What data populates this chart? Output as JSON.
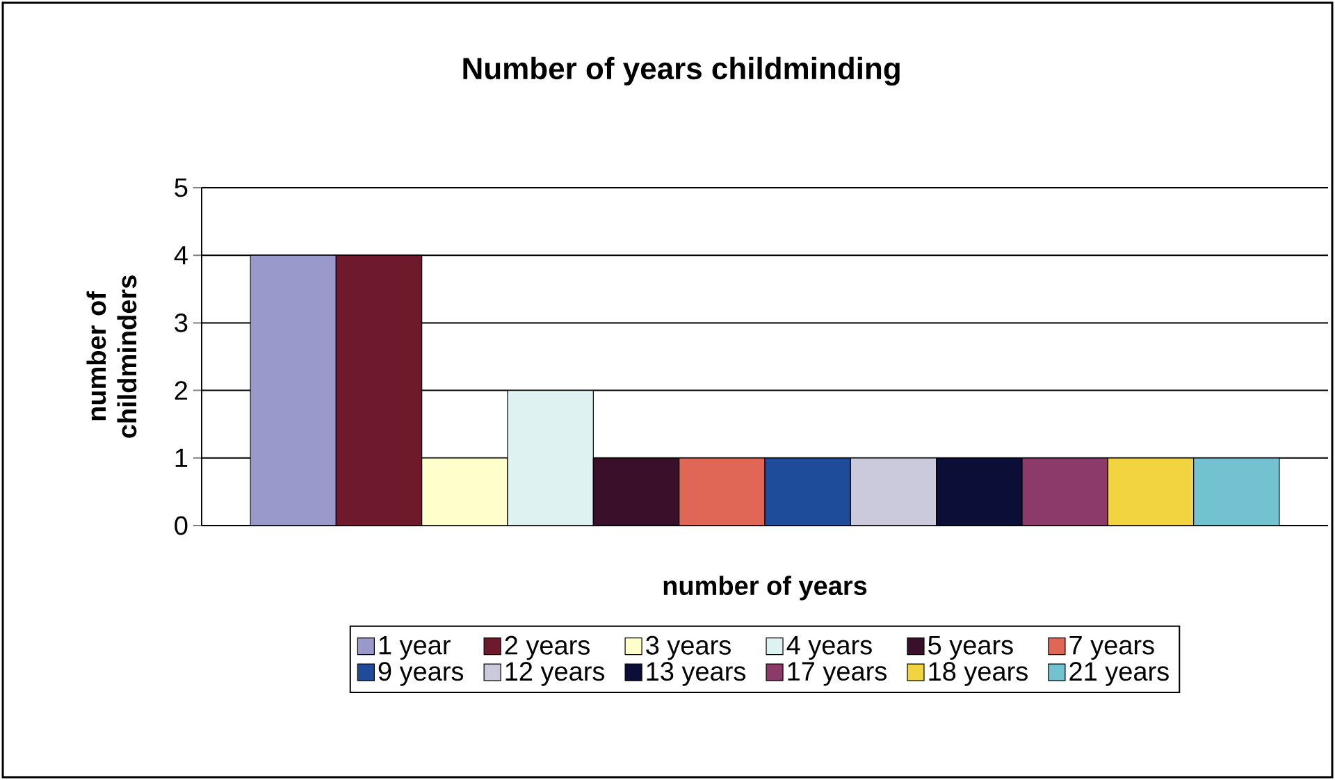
{
  "chart_data": {
    "type": "bar",
    "title": "Number of years childminding",
    "xlabel": "number of years",
    "ylabel": "number of childminders",
    "categories": [
      null
    ],
    "series": [
      {
        "name": "1 year",
        "color": "#9999cc",
        "values": [
          4
        ]
      },
      {
        "name": "2 years",
        "color": "#6e1a2c",
        "values": [
          4
        ]
      },
      {
        "name": "3 years",
        "color": "#ffffcc",
        "values": [
          1
        ]
      },
      {
        "name": "4 years",
        "color": "#dff2f2",
        "values": [
          2
        ]
      },
      {
        "name": "5 years",
        "color": "#3a0f2a",
        "values": [
          1
        ]
      },
      {
        "name": "7 years",
        "color": "#e06656",
        "values": [
          1
        ]
      },
      {
        "name": "9 years",
        "color": "#1e4c9a",
        "values": [
          1
        ]
      },
      {
        "name": "12 years",
        "color": "#cacadc",
        "values": [
          1
        ]
      },
      {
        "name": "13 years",
        "color": "#0b0f38",
        "values": [
          1
        ]
      },
      {
        "name": "17 years",
        "color": "#8b3a6a",
        "values": [
          1
        ]
      },
      {
        "name": "18 years",
        "color": "#f2d440",
        "values": [
          1
        ]
      },
      {
        "name": "21 years",
        "color": "#72c2d2",
        "values": [
          1
        ]
      }
    ],
    "ylim": [
      0,
      5
    ],
    "yticks": [
      0,
      1,
      2,
      3,
      4,
      5
    ],
    "grid": "y",
    "legend": "bottom"
  }
}
